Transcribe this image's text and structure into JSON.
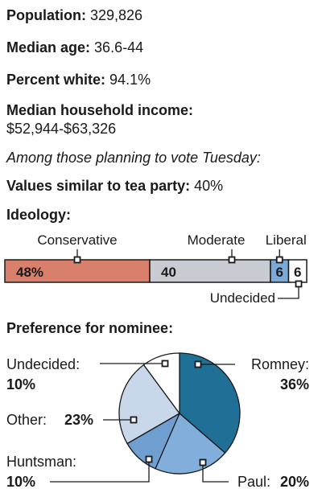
{
  "stats": {
    "population_label": "Population:",
    "population_value": "329,826",
    "median_age_label": "Median age:",
    "median_age_value": "36.6-44",
    "percent_white_label": "Percent white:",
    "percent_white_value": "94.1%",
    "income_label": "Median household income:",
    "income_value": "$52,944-$63,326"
  },
  "intro": "Among those planning to vote Tuesday:",
  "tea_party": {
    "label": "Values similar to tea party:",
    "value": "40%"
  },
  "colors": {
    "conservative": "#d9806c",
    "moderate": "#c8cbd1",
    "liberal": "#7baad9",
    "undecided_bar": "#ffffff",
    "romney": "#1f6f96",
    "paul": "#82aedb",
    "huntsman": "#6f9ed1",
    "other": "#c8d8ea",
    "undecided_pie": "#ffffff"
  },
  "chart_data": [
    {
      "type": "bar",
      "title": "Ideology:",
      "stacked": true,
      "categories": [
        "Conservative",
        "Moderate",
        "Liberal",
        "Undecided"
      ],
      "values": [
        48,
        40,
        6,
        6
      ],
      "value_labels": [
        "48%",
        "40",
        "6",
        "6"
      ],
      "xlim": [
        0,
        100
      ]
    },
    {
      "type": "pie",
      "title": "Preference for nominee:",
      "slices": [
        {
          "name": "Romney",
          "label": "Romney:",
          "value": 36,
          "value_label": "36%"
        },
        {
          "name": "Paul",
          "label": "Paul:",
          "value": 20,
          "value_label": "20%"
        },
        {
          "name": "Huntsman",
          "label": "Huntsman:",
          "value": 10,
          "value_label": "10%"
        },
        {
          "name": "Other",
          "label": "Other:",
          "value": 23,
          "value_label": "23%"
        },
        {
          "name": "Undecided",
          "label": "Undecided:",
          "value": 10,
          "value_label": "10%"
        }
      ]
    }
  ]
}
